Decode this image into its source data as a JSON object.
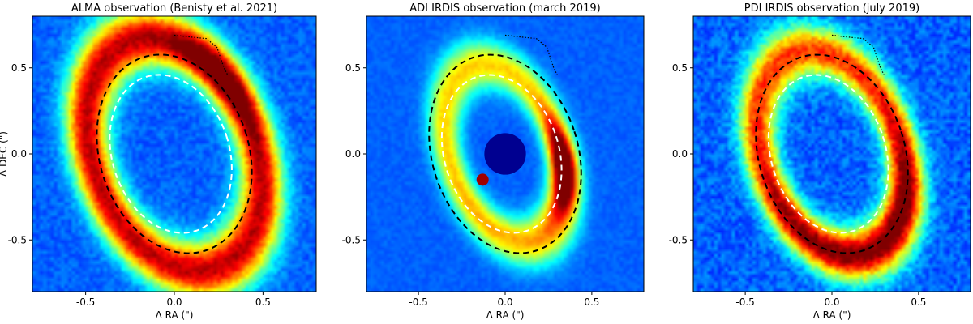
{
  "chart_data": [
    {
      "type": "heatmap",
      "title": "ALMA observation (Benisty et al. 2021)",
      "xlabel": "Δ RA (\")",
      "ylabel": "Δ DEC (\")",
      "xlim": [
        -0.8,
        0.8
      ],
      "ylim": [
        -0.8,
        0.8
      ],
      "xticks": [
        -0.5,
        0.0,
        0.5
      ],
      "yticks": [
        -0.5,
        0.0,
        0.5
      ],
      "colormap": "jet",
      "mask_center": false,
      "features": {
        "disk_ring": {
          "cx": 0.0,
          "cy": 0.0,
          "a": 0.46,
          "b": 0.7,
          "pa_deg": 20,
          "width": 0.16,
          "strength": 0.72
        },
        "bright_arc": {
          "cx": 0.28,
          "cy": 0.45,
          "r": 0.22,
          "strength": 0.25
        },
        "noise_level": 0.08
      },
      "ellipses": [
        {
          "label": "outer",
          "cx": 0.0,
          "cy": 0.0,
          "a": 0.42,
          "b": 0.59,
          "pa_deg": 18,
          "color": "#000000"
        },
        {
          "label": "inner",
          "cx": -0.02,
          "cy": 0.0,
          "a": 0.33,
          "b": 0.47,
          "pa_deg": 18,
          "color": "#ffffff"
        }
      ],
      "dotted_curve": [
        [
          0.0,
          0.69
        ],
        [
          0.08,
          0.68
        ],
        [
          0.18,
          0.67
        ],
        [
          0.24,
          0.62
        ],
        [
          0.28,
          0.5
        ],
        [
          0.3,
          0.46
        ]
      ]
    },
    {
      "type": "heatmap",
      "title": "ADI IRDIS observation (march 2019)",
      "xlabel": "Δ RA (\")",
      "ylabel": "",
      "xlim": [
        -0.8,
        0.8
      ],
      "ylim": [
        -0.8,
        0.8
      ],
      "xticks": [
        -0.5,
        0.0,
        0.5
      ],
      "yticks": [
        -0.5,
        0.0,
        0.5
      ],
      "colormap": "jet",
      "mask_center": true,
      "features": {
        "disk_ring": {
          "cx": 0.0,
          "cy": 0.0,
          "a": 0.32,
          "b": 0.54,
          "pa_deg": 20,
          "width": 0.12,
          "strength": 0.45
        },
        "bright_arc": {
          "cx": 0.2,
          "cy": -0.1,
          "r": 0.17,
          "strength": 0.9
        },
        "noise_level": 0.04
      },
      "ellipses": [
        {
          "label": "outer",
          "cx": 0.0,
          "cy": 0.0,
          "a": 0.42,
          "b": 0.59,
          "pa_deg": 18,
          "color": "#000000"
        },
        {
          "label": "inner",
          "cx": -0.02,
          "cy": 0.0,
          "a": 0.33,
          "b": 0.47,
          "pa_deg": 18,
          "color": "#ffffff"
        }
      ],
      "dotted_curve": [
        [
          0.0,
          0.69
        ],
        [
          0.08,
          0.68
        ],
        [
          0.18,
          0.67
        ],
        [
          0.24,
          0.62
        ],
        [
          0.28,
          0.5
        ],
        [
          0.3,
          0.46
        ]
      ]
    },
    {
      "type": "heatmap",
      "title": "PDI IRDIS observation (july 2019)",
      "xlabel": "Δ RA (\")",
      "ylabel": "",
      "xlim": [
        -0.8,
        0.8
      ],
      "ylim": [
        -0.8,
        0.8
      ],
      "xticks": [
        -0.5,
        0.0,
        0.5
      ],
      "yticks": [
        -0.5,
        0.0,
        0.5
      ],
      "colormap": "jet",
      "mask_center": false,
      "features": {
        "disk_ring": {
          "cx": 0.0,
          "cy": 0.0,
          "a": 0.4,
          "b": 0.62,
          "pa_deg": 20,
          "width": 0.14,
          "strength": 0.6
        },
        "bright_arc": {
          "cx": 0.12,
          "cy": -0.25,
          "r": 0.28,
          "strength": 0.45
        },
        "noise_level": 0.12
      },
      "ellipses": [
        {
          "label": "outer",
          "cx": 0.0,
          "cy": 0.0,
          "a": 0.42,
          "b": 0.59,
          "pa_deg": 18,
          "color": "#000000"
        },
        {
          "label": "inner",
          "cx": -0.02,
          "cy": 0.0,
          "a": 0.33,
          "b": 0.47,
          "pa_deg": 18,
          "color": "#ffffff"
        }
      ],
      "dotted_curve": [
        [
          0.0,
          0.69
        ],
        [
          0.08,
          0.68
        ],
        [
          0.18,
          0.67
        ],
        [
          0.24,
          0.62
        ],
        [
          0.28,
          0.5
        ],
        [
          0.3,
          0.46
        ]
      ]
    }
  ]
}
